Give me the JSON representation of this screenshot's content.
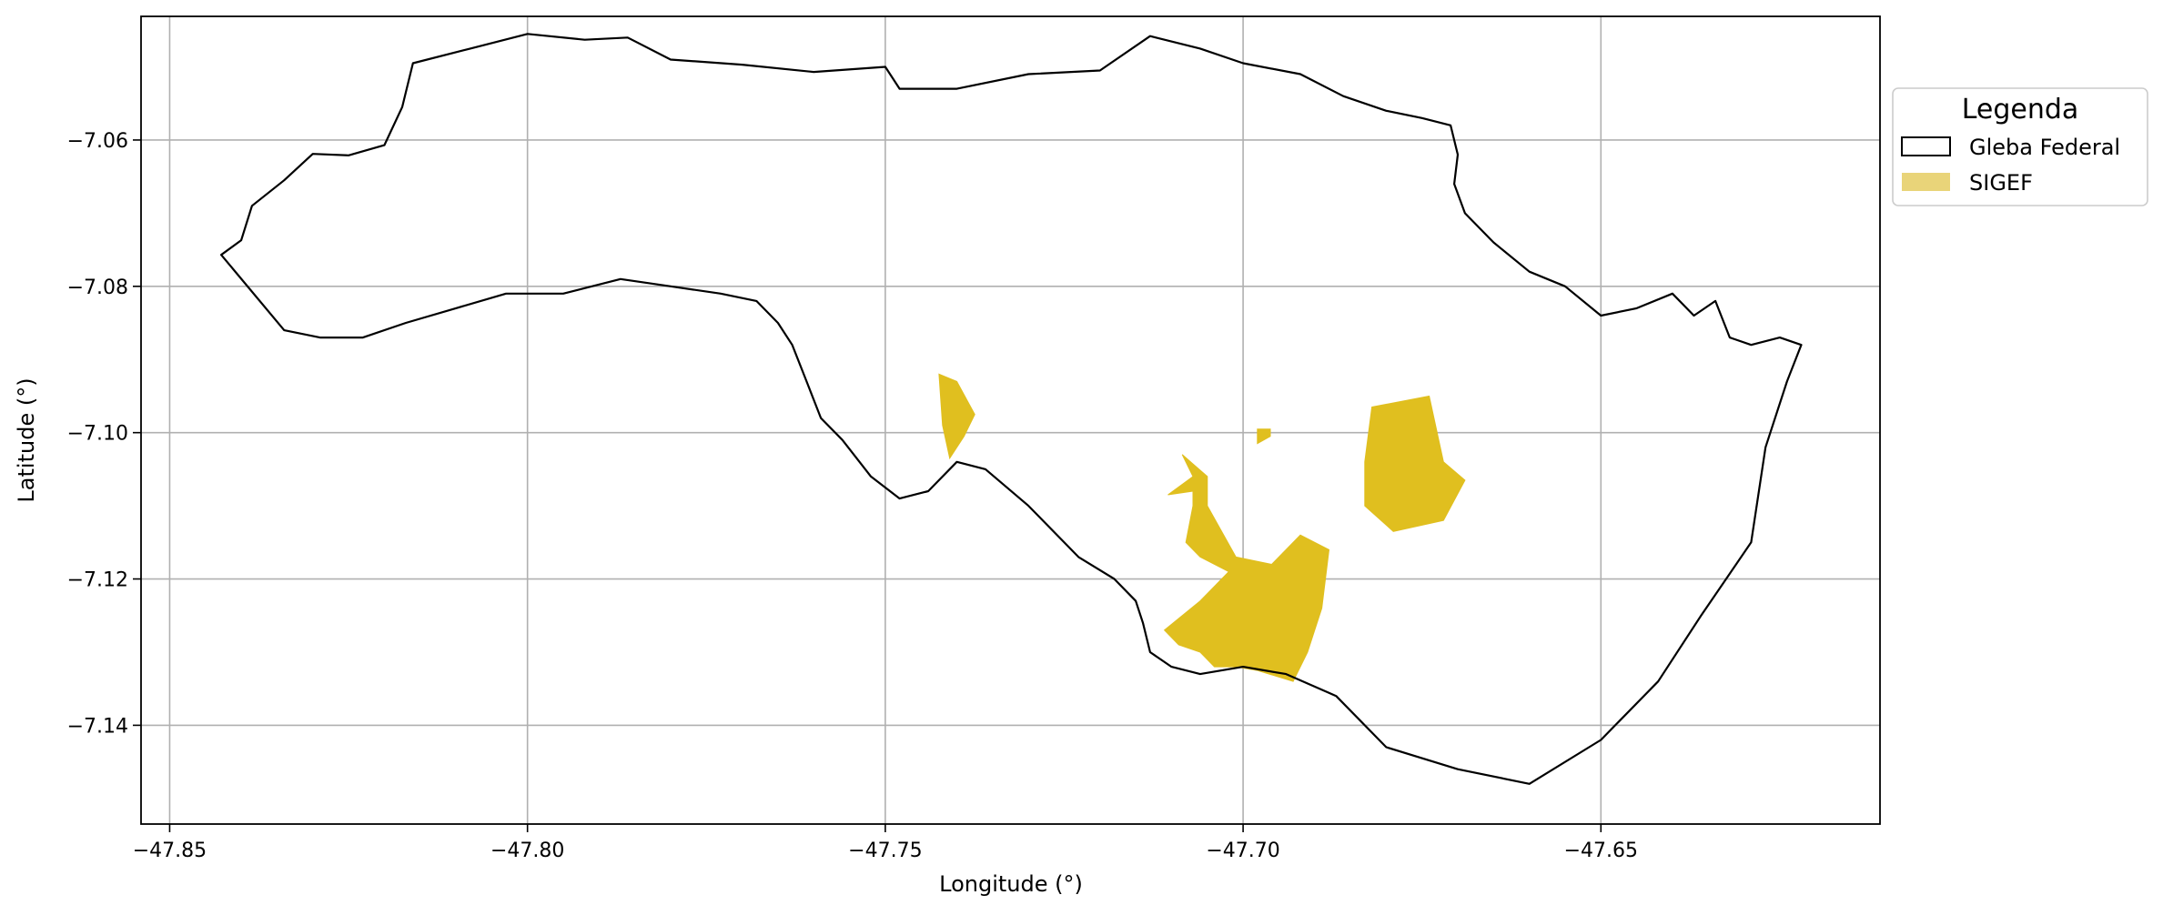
{
  "chart_data": {
    "type": "map",
    "xlabel": "Longitude (°)",
    "ylabel": "Latitude (°)",
    "xlim": [
      -47.854,
      -47.611
    ],
    "ylim": [
      -7.1535,
      -7.0431
    ],
    "x_ticks": [
      {
        "value": -47.85,
        "label": "−47.85"
      },
      {
        "value": -47.8,
        "label": "−47.80"
      },
      {
        "value": -47.75,
        "label": "−47.75"
      },
      {
        "value": -47.7,
        "label": "−47.70"
      },
      {
        "value": -47.65,
        "label": "−47.65"
      }
    ],
    "y_ticks": [
      {
        "value": -7.06,
        "label": "−7.06"
      },
      {
        "value": -7.08,
        "label": "−7.08"
      },
      {
        "value": -7.1,
        "label": "−7.10"
      },
      {
        "value": -7.12,
        "label": "−7.12"
      },
      {
        "value": -7.14,
        "label": "−7.14"
      }
    ],
    "grid": true,
    "legend": {
      "title": "Legenda",
      "placement": "outside-right-top",
      "entries": [
        {
          "label": "Gleba Federal",
          "style": "outline",
          "edge": "#000000",
          "fill": "#ffffff"
        },
        {
          "label": "SIGEF",
          "style": "fill",
          "fill": "#e9d479"
        }
      ]
    },
    "layers": [
      {
        "name": "Gleba Federal",
        "type": "polygon-outline",
        "color": "#000000",
        "coords": [
          [
            -47.8428,
            -7.0757
          ],
          [
            -47.84,
            -7.0737
          ],
          [
            -47.8385,
            -7.069
          ],
          [
            -47.834,
            -7.0655
          ],
          [
            -47.83,
            -7.0619
          ],
          [
            -47.825,
            -7.0621
          ],
          [
            -47.82,
            -7.0607
          ],
          [
            -47.8175,
            -7.0555
          ],
          [
            -47.816,
            -7.0495
          ],
          [
            -47.808,
            -7.0475
          ],
          [
            -47.8,
            -7.0455
          ],
          [
            -47.792,
            -7.0463
          ],
          [
            -47.786,
            -7.046
          ],
          [
            -47.78,
            -7.049
          ],
          [
            -47.77,
            -7.0497
          ],
          [
            -47.76,
            -7.0507
          ],
          [
            -47.75,
            -7.05
          ],
          [
            -47.748,
            -7.053
          ],
          [
            -47.74,
            -7.053
          ],
          [
            -47.73,
            -7.051
          ],
          [
            -47.72,
            -7.0505
          ],
          [
            -47.713,
            -7.0458
          ],
          [
            -47.706,
            -7.0475
          ],
          [
            -47.7,
            -7.0495
          ],
          [
            -47.692,
            -7.051
          ],
          [
            -47.686,
            -7.054
          ],
          [
            -47.68,
            -7.056
          ],
          [
            -47.675,
            -7.057
          ],
          [
            -47.671,
            -7.058
          ],
          [
            -47.67,
            -7.062
          ],
          [
            -47.6705,
            -7.066
          ],
          [
            -47.669,
            -7.07
          ],
          [
            -47.665,
            -7.074
          ],
          [
            -47.66,
            -7.078
          ],
          [
            -47.655,
            -7.08
          ],
          [
            -47.65,
            -7.084
          ],
          [
            -47.645,
            -7.083
          ],
          [
            -47.64,
            -7.081
          ],
          [
            -47.637,
            -7.084
          ],
          [
            -47.634,
            -7.082
          ],
          [
            -47.632,
            -7.087
          ],
          [
            -47.629,
            -7.088
          ],
          [
            -47.625,
            -7.087
          ],
          [
            -47.622,
            -7.088
          ],
          [
            -47.624,
            -7.093
          ],
          [
            -47.627,
            -7.102
          ],
          [
            -47.629,
            -7.115
          ],
          [
            -47.636,
            -7.125
          ],
          [
            -47.642,
            -7.134
          ],
          [
            -47.65,
            -7.142
          ],
          [
            -47.66,
            -7.148
          ],
          [
            -47.67,
            -7.146
          ],
          [
            -47.68,
            -7.143
          ],
          [
            -47.687,
            -7.136
          ],
          [
            -47.694,
            -7.133
          ],
          [
            -47.7,
            -7.132
          ],
          [
            -47.706,
            -7.133
          ],
          [
            -47.71,
            -7.132
          ],
          [
            -47.713,
            -7.13
          ],
          [
            -47.714,
            -7.126
          ],
          [
            -47.715,
            -7.123
          ],
          [
            -47.718,
            -7.12
          ],
          [
            -47.723,
            -7.117
          ],
          [
            -47.73,
            -7.11
          ],
          [
            -47.736,
            -7.105
          ],
          [
            -47.74,
            -7.104
          ],
          [
            -47.744,
            -7.108
          ],
          [
            -47.748,
            -7.109
          ],
          [
            -47.752,
            -7.106
          ],
          [
            -47.756,
            -7.101
          ],
          [
            -47.759,
            -7.098
          ],
          [
            -47.761,
            -7.093
          ],
          [
            -47.763,
            -7.088
          ],
          [
            -47.765,
            -7.085
          ],
          [
            -47.768,
            -7.082
          ],
          [
            -47.773,
            -7.081
          ],
          [
            -47.78,
            -7.08
          ],
          [
            -47.787,
            -7.079
          ],
          [
            -47.795,
            -7.081
          ],
          [
            -47.803,
            -7.081
          ],
          [
            -47.81,
            -7.083
          ],
          [
            -47.817,
            -7.085
          ],
          [
            -47.823,
            -7.087
          ],
          [
            -47.829,
            -7.087
          ],
          [
            -47.834,
            -7.086
          ],
          [
            -47.8428,
            -7.0757
          ]
        ]
      },
      {
        "name": "SIGEF",
        "type": "polygon-fill",
        "color": "#e0bf1f",
        "polygons": [
          [
            [
              -47.7425,
              -7.092
            ],
            [
              -47.74,
              -7.093
            ],
            [
              -47.7375,
              -7.0975
            ],
            [
              -47.739,
              -7.1005
            ],
            [
              -47.741,
              -7.1035
            ],
            [
              -47.742,
              -7.099
            ]
          ],
          [
            [
              -47.698,
              -7.0995
            ],
            [
              -47.6962,
              -7.0995
            ],
            [
              -47.6962,
              -7.1005
            ],
            [
              -47.698,
              -7.1015
            ]
          ],
          [
            [
              -47.7085,
              -7.103
            ],
            [
              -47.705,
              -7.106
            ],
            [
              -47.705,
              -7.11
            ],
            [
              -47.701,
              -7.117
            ],
            [
              -47.696,
              -7.118
            ],
            [
              -47.692,
              -7.114
            ],
            [
              -47.688,
              -7.116
            ],
            [
              -47.689,
              -7.124
            ],
            [
              -47.691,
              -7.13
            ],
            [
              -47.693,
              -7.134
            ],
            [
              -47.698,
              -7.1325
            ],
            [
              -47.701,
              -7.132
            ],
            [
              -47.704,
              -7.132
            ],
            [
              -47.706,
              -7.13
            ],
            [
              -47.709,
              -7.129
            ],
            [
              -47.711,
              -7.127
            ],
            [
              -47.706,
              -7.123
            ],
            [
              -47.702,
              -7.119
            ],
            [
              -47.706,
              -7.117
            ],
            [
              -47.708,
              -7.115
            ],
            [
              -47.707,
              -7.11
            ],
            [
              -47.707,
              -7.108
            ],
            [
              -47.7105,
              -7.1085
            ],
            [
              -47.707,
              -7.106
            ]
          ],
          [
            [
              -47.682,
              -7.0965
            ],
            [
              -47.674,
              -7.095
            ],
            [
              -47.672,
              -7.104
            ],
            [
              -47.669,
              -7.1065
            ],
            [
              -47.672,
              -7.112
            ],
            [
              -47.679,
              -7.1135
            ],
            [
              -47.683,
              -7.11
            ],
            [
              -47.683,
              -7.104
            ]
          ]
        ]
      }
    ]
  }
}
